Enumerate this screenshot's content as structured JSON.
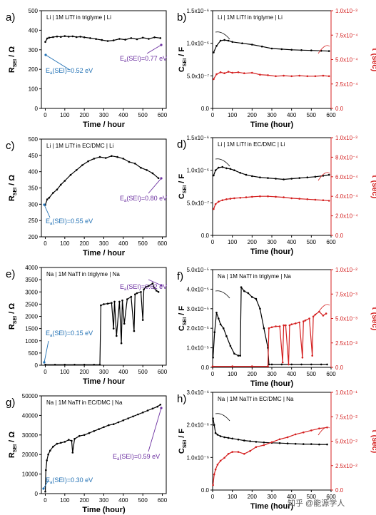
{
  "watermark": "知乎 @能源学人",
  "chart_data": [
    {
      "id": "a",
      "panel_label": "a)",
      "type": "scatter",
      "title": "Li | 1M LiTf in triglyme | Li",
      "xlabel": "Time / hour",
      "ylabel_main": "R",
      "ylabel_sub": "SEI",
      "ylabel_unit": " / Ω",
      "xlim": [
        -20,
        620
      ],
      "ylim": [
        0,
        500
      ],
      "xticks": [
        "0",
        "100",
        "200",
        "300",
        "400",
        "500",
        "600"
      ],
      "yticks": [
        "0",
        "100",
        "200",
        "300",
        "400",
        "500"
      ],
      "annotations": [
        {
          "text_main": "E",
          "text_sub": "a",
          "text_rest": "(SEI)=0.52 eV",
          "color": "blue"
        },
        {
          "text_main": "E",
          "text_sub": "a",
          "text_rest": "(SEI)=0.77 eV",
          "color": "purple"
        }
      ],
      "series": [
        {
          "color": "#000000",
          "x": [
            0,
            10,
            20,
            40,
            60,
            80,
            100,
            120,
            140,
            160,
            180,
            200,
            230,
            260,
            290,
            320,
            350,
            380,
            410,
            440,
            470,
            500,
            530,
            560,
            590
          ],
          "y": [
            340,
            358,
            362,
            365,
            368,
            366,
            370,
            367,
            369,
            365,
            367,
            364,
            360,
            355,
            350,
            345,
            348,
            356,
            352,
            360,
            354,
            362,
            356,
            364,
            360
          ]
        }
      ]
    },
    {
      "id": "b",
      "panel_label": "b)",
      "type": "scatter",
      "title": "Li | 1M LiTf in triglyme | Li",
      "xlabel": "Time (hour)",
      "ylabel_main": "C",
      "ylabel_sub": "SEI",
      "ylabel_unit": " / F",
      "y2label": "τ (sec)",
      "xlim": [
        0,
        600
      ],
      "ylim": [
        0,
        1.5e-06
      ],
      "y2lim": [
        0,
        0.001
      ],
      "xticks": [
        "0",
        "100",
        "200",
        "300",
        "400",
        "500",
        "600"
      ],
      "yticks": [
        "0.0",
        "5.0x10⁻⁷",
        "1.0x10⁻⁶",
        "1.5x10⁻⁶"
      ],
      "y2ticks": [
        "0.0",
        "2.5x10⁻⁴",
        "5.0x10⁻⁴",
        "7.5x10⁻⁴",
        "1.0x10⁻³"
      ],
      "series": [
        {
          "axis": "left",
          "color": "#000000",
          "x": [
            5,
            20,
            40,
            60,
            80,
            100,
            150,
            200,
            250,
            300,
            350,
            400,
            450,
            500,
            550,
            590
          ],
          "y": [
            8.6e-07,
            9.6e-07,
            1.04e-06,
            1.05e-06,
            1.04e-06,
            1.02e-06,
            1e-06,
            9.8e-07,
            9.5e-07,
            9.2e-07,
            9.1e-07,
            9e-07,
            8.95e-07,
            8.9e-07,
            8.85e-07,
            8.8e-07
          ]
        },
        {
          "axis": "right",
          "color": "#d42020",
          "x": [
            5,
            20,
            40,
            60,
            80,
            100,
            130,
            160,
            200,
            240,
            280,
            320,
            360,
            400,
            440,
            480,
            520,
            560,
            590
          ],
          "y": [
            0.0003,
            0.00035,
            0.00037,
            0.00036,
            0.000375,
            0.000365,
            0.00037,
            0.00036,
            0.000365,
            0.000345,
            0.00034,
            0.00033,
            0.000335,
            0.00033,
            0.000335,
            0.00033,
            0.00033,
            0.000335,
            0.00033
          ]
        }
      ]
    },
    {
      "id": "c",
      "panel_label": "c)",
      "type": "scatter",
      "title": "Li | 1M LiTf in EC/DMC | Li",
      "xlabel": "Time / hour",
      "ylabel_main": "R",
      "ylabel_sub": "SEI",
      "ylabel_unit": " / Ω",
      "xlim": [
        -20,
        620
      ],
      "ylim": [
        200,
        500
      ],
      "xticks": [
        "0",
        "100",
        "200",
        "300",
        "400",
        "500",
        "600"
      ],
      "yticks": [
        "200",
        "250",
        "300",
        "350",
        "400",
        "450",
        "500"
      ],
      "annotations": [
        {
          "text_main": "E",
          "text_sub": "a",
          "text_rest": "(SEI)=0.55 eV",
          "color": "blue"
        },
        {
          "text_main": "E",
          "text_sub": "a",
          "text_rest": "(SEI)=0.80 eV",
          "color": "purple"
        }
      ],
      "series": [
        {
          "color": "#000000",
          "x": [
            0,
            10,
            20,
            40,
            60,
            80,
            100,
            130,
            160,
            190,
            220,
            250,
            280,
            310,
            340,
            370,
            400,
            430,
            460,
            490,
            520,
            550,
            580
          ],
          "y": [
            298,
            315,
            320,
            335,
            345,
            360,
            372,
            390,
            405,
            420,
            432,
            440,
            445,
            442,
            448,
            445,
            440,
            430,
            425,
            412,
            405,
            395,
            380
          ]
        }
      ]
    },
    {
      "id": "d",
      "panel_label": "d)",
      "type": "scatter",
      "title": "Li | 1M LiTf in EC/DMC | Li",
      "xlabel": "Time (hour)",
      "ylabel_main": "C",
      "ylabel_sub": "SEI",
      "ylabel_unit": " / F",
      "y2label": "τ (sec)",
      "xlim": [
        0,
        600
      ],
      "ylim": [
        0,
        1.5e-06
      ],
      "y2lim": [
        0,
        0.001
      ],
      "xticks": [
        "0",
        "100",
        "200",
        "300",
        "400",
        "500",
        "600"
      ],
      "yticks": [
        "0.0",
        "5.0x10⁻⁷",
        "1.0x10⁻⁶",
        "1.5x10⁻⁶"
      ],
      "y2ticks": [
        "0.0",
        "2.0x10⁻⁴",
        "4.0x10⁻⁴",
        "6.0x10⁻⁴",
        "8.0x10⁻⁴",
        "1.0x10⁻³"
      ],
      "series": [
        {
          "axis": "left",
          "color": "#000000",
          "x": [
            5,
            15,
            30,
            50,
            70,
            90,
            110,
            140,
            170,
            200,
            240,
            280,
            320,
            360,
            400,
            440,
            480,
            520,
            560,
            590
          ],
          "y": [
            9.2e-07,
            1e-06,
            1.04e-06,
            1.05e-06,
            1.03e-06,
            1.02e-06,
            1e-06,
            9.6e-07,
            9.3e-07,
            9.1e-07,
            8.9e-07,
            8.8e-07,
            8.7e-07,
            8.6e-07,
            8.7e-07,
            8.8e-07,
            8.9e-07,
            9e-07,
            9.15e-07,
            9.3e-07
          ]
        },
        {
          "axis": "right",
          "color": "#d42020",
          "x": [
            5,
            15,
            30,
            50,
            70,
            90,
            110,
            140,
            170,
            200,
            240,
            280,
            320,
            360,
            400,
            440,
            480,
            520,
            560,
            590
          ],
          "y": [
            0.00027,
            0.00032,
            0.000345,
            0.00036,
            0.00037,
            0.000375,
            0.00038,
            0.000385,
            0.00039,
            0.000395,
            0.0004,
            0.0004,
            0.000395,
            0.00039,
            0.00038,
            0.000375,
            0.00037,
            0.000365,
            0.00036,
            0.000355
          ]
        }
      ]
    },
    {
      "id": "e",
      "panel_label": "e)",
      "type": "scatter",
      "title": "Na | 1M NaTf in triglyme | Na",
      "xlabel": "Time / hour",
      "ylabel_main": "R",
      "ylabel_sub": "SEI",
      "ylabel_unit": " / Ω",
      "xlim": [
        -20,
        620
      ],
      "ylim": [
        0,
        4000
      ],
      "xticks": [
        "0",
        "100",
        "200",
        "300",
        "400",
        "500",
        "600"
      ],
      "yticks": [
        "0",
        "500",
        "1000",
        "1500",
        "2000",
        "2500",
        "3000",
        "3500",
        "4000"
      ],
      "annotations": [
        {
          "text_main": "E",
          "text_sub": "a",
          "text_rest": "(SEI)=0.15 eV",
          "color": "blue"
        },
        {
          "text_main": "E",
          "text_sub": "a",
          "text_rest": "(SEI)=0.62 eV",
          "color": "purple"
        }
      ],
      "series": [
        {
          "color": "#000000",
          "x": [
            0,
            50,
            100,
            150,
            200,
            250,
            280,
            285,
            300,
            320,
            340,
            350,
            355,
            365,
            380,
            390,
            395,
            405,
            420,
            440,
            455,
            460,
            470,
            490,
            500,
            505,
            515,
            530,
            550,
            560,
            570,
            580
          ],
          "y": [
            20,
            20,
            20,
            20,
            20,
            20,
            20,
            2450,
            2500,
            2520,
            2550,
            1500,
            2600,
            1200,
            2600,
            900,
            2650,
            1700,
            2700,
            2800,
            1400,
            2900,
            2950,
            3000,
            1850,
            3100,
            3200,
            3250,
            3350,
            3150,
            3050,
            3000
          ]
        }
      ]
    },
    {
      "id": "f",
      "panel_label": "f)",
      "type": "scatter",
      "title": "Na | 1M NaTf in triglyme | Na",
      "xlabel": "Time (hour)",
      "ylabel_main": "C",
      "ylabel_sub": "SEI",
      "ylabel_unit": " / F",
      "y2label": "τ (sec)",
      "xlim": [
        0,
        600
      ],
      "ylim": [
        0,
        5e-05
      ],
      "y2lim": [
        0,
        0.01
      ],
      "xticks": [
        "0",
        "100",
        "200",
        "300",
        "400",
        "500",
        "600"
      ],
      "yticks": [
        "0.0",
        "1.0x10⁻⁵",
        "2.0x10⁻⁵",
        "3.0x10⁻⁵",
        "4.0x10⁻⁵",
        "5.0x10⁻⁵"
      ],
      "y2ticks": [
        "0.0",
        "2.5x10⁻³",
        "5.0x10⁻³",
        "7.5x10⁻³",
        "1.0x10⁻²"
      ],
      "series": [
        {
          "axis": "left",
          "color": "#000000",
          "x": [
            2,
            10,
            20,
            30,
            40,
            55,
            70,
            90,
            110,
            130,
            140,
            145,
            160,
            180,
            200,
            220,
            240,
            260,
            280,
            285,
            300,
            350,
            400,
            450,
            500,
            550,
            580
          ],
          "y": [
            5e-06,
            1.8e-05,
            2.8e-05,
            2.5e-05,
            2.2e-05,
            2e-05,
            1.6e-05,
            1.1e-05,
            7e-06,
            6e-06,
            6e-06,
            4.1e-05,
            3.9e-05,
            3.8e-05,
            3.6e-05,
            3.5e-05,
            3e-05,
            2e-05,
            1e-05,
            1.5e-06,
            1.5e-06,
            1.5e-06,
            1.5e-06,
            1.5e-06,
            1.5e-06,
            1.5e-06,
            1.5e-06
          ]
        },
        {
          "axis": "right",
          "color": "#d42020",
          "x": [
            0,
            100,
            200,
            280,
            285,
            300,
            320,
            340,
            355,
            360,
            370,
            385,
            390,
            400,
            420,
            440,
            455,
            460,
            470,
            490,
            505,
            510,
            520,
            540,
            560,
            575
          ],
          "y": [
            0.0001,
            0.0001,
            0.0001,
            0.0001,
            0.004,
            0.0041,
            0.0042,
            0.0042,
            0.0005,
            0.0043,
            0.0043,
            0.0003,
            0.0043,
            0.0044,
            0.0045,
            0.0046,
            0.001,
            0.0047,
            0.0048,
            0.005,
            0.0012,
            0.0052,
            0.0054,
            0.0057,
            0.0053,
            0.0055
          ]
        }
      ]
    },
    {
      "id": "g",
      "panel_label": "g)",
      "type": "scatter",
      "title": "Na | 1M NaTf in EC/DMC | Na",
      "xlabel": "Time (hour)",
      "ylabel_main": "R",
      "ylabel_sub": "SEI",
      "ylabel_unit": " / Ω",
      "xlim": [
        -20,
        620
      ],
      "ylim": [
        0,
        50000
      ],
      "xticks": [
        "0",
        "100",
        "200",
        "300",
        "400",
        "500",
        "600"
      ],
      "yticks": [
        "0",
        "10000",
        "20000",
        "30000",
        "40000",
        "50000"
      ],
      "annotations": [
        {
          "text_main": "E",
          "text_sub": "a",
          "text_rest": "(SEI)=0.30 eV",
          "color": "blue"
        },
        {
          "text_main": "E",
          "text_sub": "a",
          "text_rest": "(SEI)=0.59 eV",
          "color": "purple"
        }
      ],
      "series": [
        {
          "color": "#000000",
          "x": [
            0,
            3,
            8,
            15,
            25,
            40,
            60,
            80,
            100,
            120,
            135,
            140,
            150,
            175,
            200,
            225,
            250,
            275,
            300,
            325,
            350,
            375,
            400,
            425,
            450,
            475,
            500,
            525,
            550,
            575,
            590
          ],
          "y": [
            1000,
            12000,
            17000,
            20000,
            22000,
            24000,
            25500,
            26000,
            26500,
            27500,
            27000,
            21000,
            28000,
            29500,
            30000,
            31000,
            32000,
            33000,
            34000,
            35000,
            35500,
            36500,
            37500,
            38500,
            39500,
            40500,
            41500,
            42500,
            43500,
            44500,
            45500
          ]
        }
      ]
    },
    {
      "id": "h",
      "panel_label": "h)",
      "type": "scatter",
      "title": "Na | 1M NaTf in EC/DMC | Na",
      "xlabel": "Time (hour)",
      "ylabel_main": "C",
      "ylabel_sub": "SEI",
      "ylabel_unit": " / F",
      "y2label": "τ (sec)",
      "xlim": [
        0,
        600
      ],
      "ylim": [
        0,
        3e-06
      ],
      "y2lim": [
        0,
        0.1
      ],
      "xticks": [
        "0",
        "100",
        "200",
        "300",
        "400",
        "500",
        "600"
      ],
      "yticks": [
        "0.0",
        "1.0x10⁻⁶",
        "2.0x10⁻⁶",
        "3.0x10⁻⁶"
      ],
      "y2ticks": [
        "0.0",
        "2.5x10⁻²",
        "5.0x10⁻²",
        "7.5x10⁻²",
        "1.0x10⁻¹"
      ],
      "series": [
        {
          "axis": "left",
          "color": "#000000",
          "x": [
            2,
            8,
            15,
            25,
            40,
            60,
            80,
            100,
            130,
            160,
            190,
            220,
            260,
            300,
            340,
            380,
            420,
            460,
            500,
            540,
            580
          ],
          "y": [
            2.2e-06,
            2e-06,
            1.75e-06,
            1.7e-06,
            1.65e-06,
            1.62e-06,
            1.6e-06,
            1.58e-06,
            1.55e-06,
            1.52e-06,
            1.5e-06,
            1.48e-06,
            1.46e-06,
            1.45e-06,
            1.44e-06,
            1.43e-06,
            1.42e-06,
            1.41e-06,
            1.41e-06,
            1.4e-06,
            1.4e-06
          ]
        },
        {
          "axis": "right",
          "color": "#d42020",
          "x": [
            2,
            8,
            15,
            25,
            40,
            60,
            80,
            100,
            130,
            160,
            190,
            220,
            260,
            300,
            340,
            380,
            420,
            460,
            500,
            540,
            580
          ],
          "y": [
            0.005,
            0.016,
            0.021,
            0.026,
            0.03,
            0.033,
            0.037,
            0.039,
            0.039,
            0.037,
            0.04,
            0.044,
            0.046,
            0.049,
            0.052,
            0.054,
            0.057,
            0.059,
            0.061,
            0.063,
            0.064
          ]
        }
      ]
    }
  ]
}
